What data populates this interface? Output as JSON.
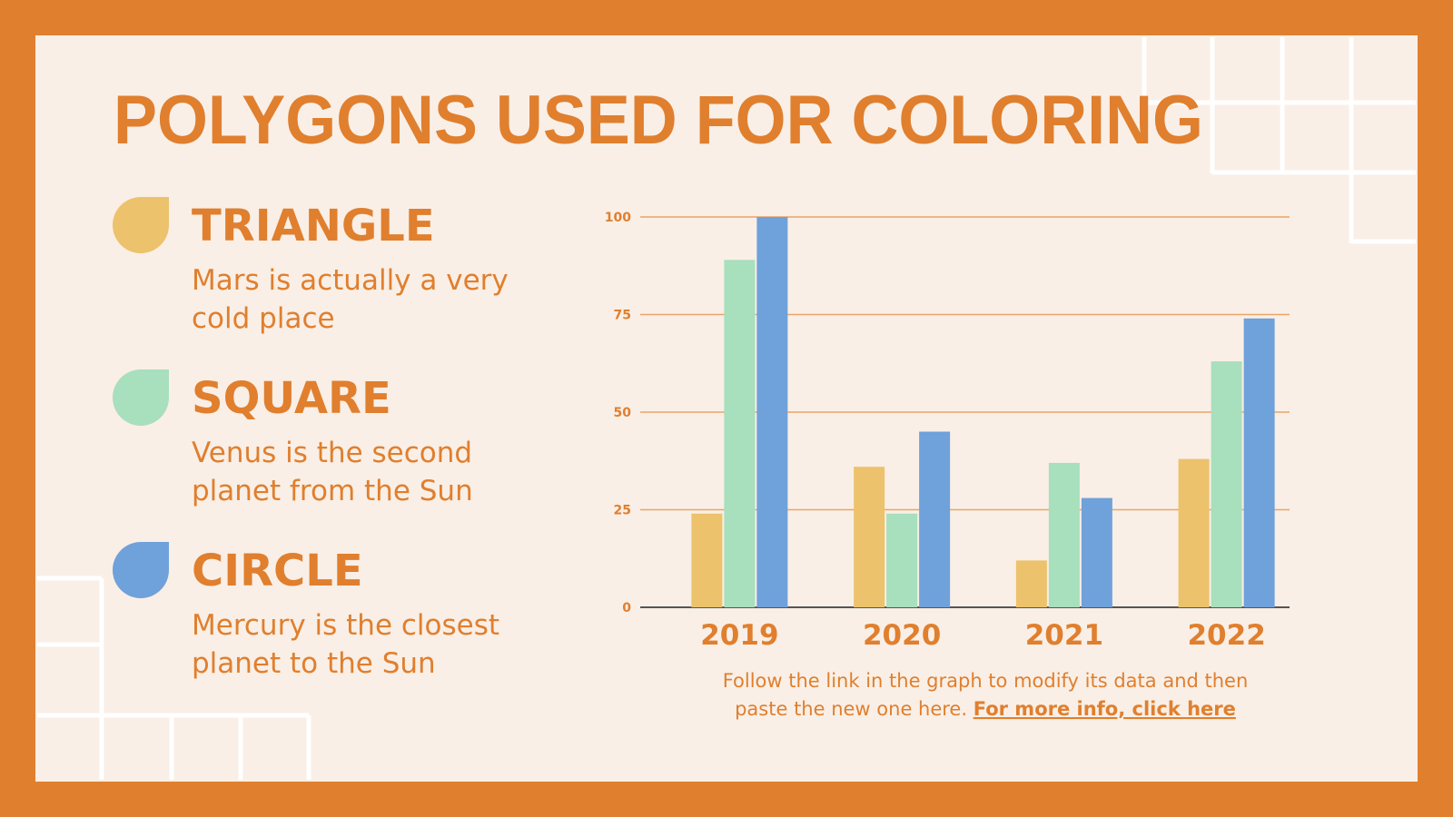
{
  "header": {
    "title": "POLYGONS USED FOR COLORING"
  },
  "chart_data": {
    "type": "bar",
    "categories": [
      "2019",
      "2020",
      "2021",
      "2022"
    ],
    "series": [
      {
        "name": "TRIANGLE",
        "description": [
          "Mars is actually a very",
          "cold place"
        ],
        "color": "#EDC26C",
        "values": [
          24,
          36,
          12,
          38
        ]
      },
      {
        "name": "SQUARE",
        "description": [
          "Venus is the second",
          "planet from the Sun"
        ],
        "color": "#A8DFBC",
        "values": [
          89,
          24,
          37,
          63
        ]
      },
      {
        "name": "CIRCLE",
        "description": [
          "Mercury is the closest",
          "planet to the Sun"
        ],
        "color": "#6FA1DA",
        "values": [
          100,
          45,
          28,
          74
        ]
      }
    ],
    "ylim": [
      0,
      100
    ],
    "yticks": [
      0,
      25,
      50,
      75,
      100
    ],
    "grid": true
  },
  "footer": {
    "lines": [
      "Follow the link in the graph to modify its data and then",
      "paste the new one here."
    ],
    "link": "For more info, click here"
  }
}
